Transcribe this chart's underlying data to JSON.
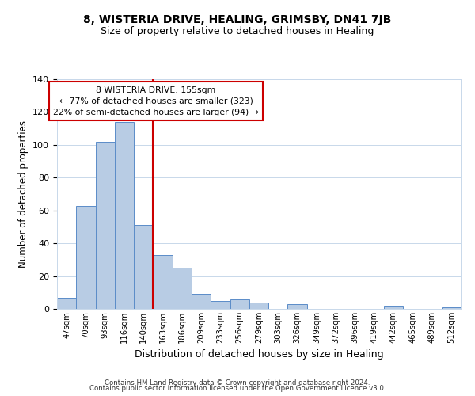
{
  "title": "8, WISTERIA DRIVE, HEALING, GRIMSBY, DN41 7JB",
  "subtitle": "Size of property relative to detached houses in Healing",
  "xlabel": "Distribution of detached houses by size in Healing",
  "ylabel": "Number of detached properties",
  "bar_labels": [
    "47sqm",
    "70sqm",
    "93sqm",
    "116sqm",
    "140sqm",
    "163sqm",
    "186sqm",
    "209sqm",
    "233sqm",
    "256sqm",
    "279sqm",
    "303sqm",
    "326sqm",
    "349sqm",
    "372sqm",
    "396sqm",
    "419sqm",
    "442sqm",
    "465sqm",
    "489sqm",
    "512sqm"
  ],
  "bar_values": [
    7,
    63,
    102,
    114,
    51,
    33,
    25,
    9,
    5,
    6,
    4,
    0,
    3,
    0,
    0,
    0,
    0,
    2,
    0,
    0,
    1
  ],
  "bar_color": "#b8cce4",
  "bar_edge_color": "#5b8cc8",
  "ylim": [
    0,
    140
  ],
  "yticks": [
    0,
    20,
    40,
    60,
    80,
    100,
    120,
    140
  ],
  "property_line_x": 4.5,
  "property_line_color": "#cc0000",
  "annotation_text": "8 WISTERIA DRIVE: 155sqm\n← 77% of detached houses are smaller (323)\n22% of semi-detached houses are larger (94) →",
  "annotation_box_color": "#ffffff",
  "annotation_box_edge": "#cc0000",
  "footer_line1": "Contains HM Land Registry data © Crown copyright and database right 2024.",
  "footer_line2": "Contains public sector information licensed under the Open Government Licence v3.0.",
  "title_fontsize": 10,
  "subtitle_fontsize": 9,
  "xlabel_fontsize": 9,
  "ylabel_fontsize": 8.5
}
